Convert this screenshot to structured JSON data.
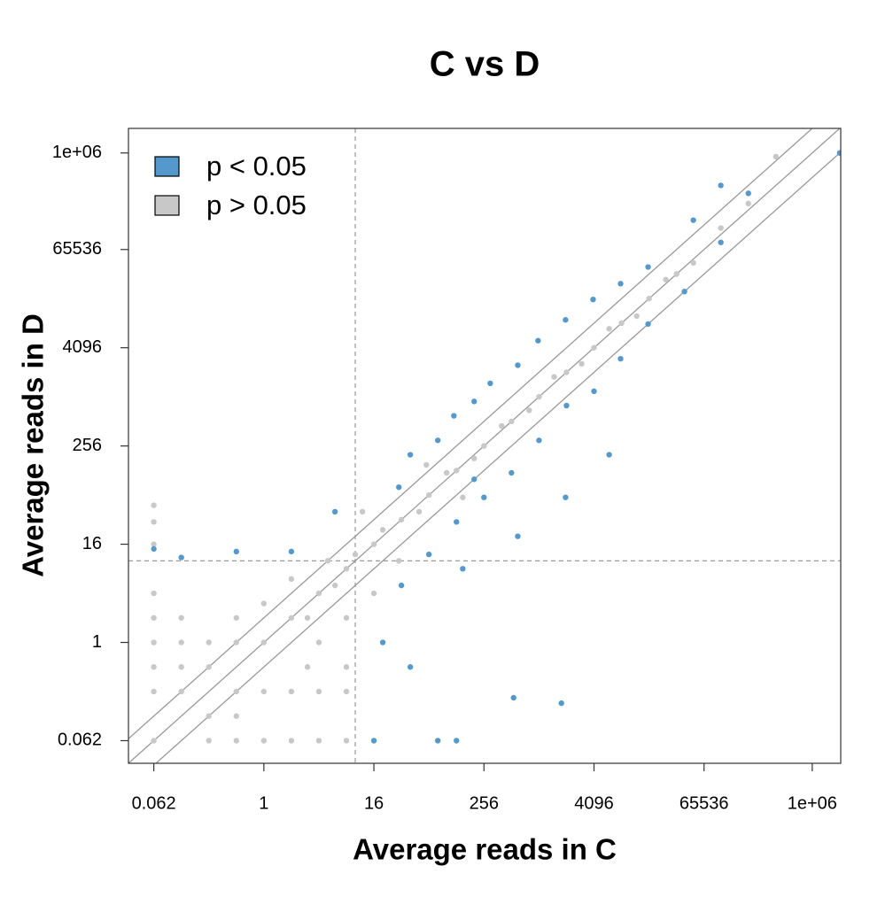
{
  "chart_data": {
    "type": "scatter",
    "title": "C vs D",
    "xlabel": "Average reads in C",
    "ylabel": "Average reads in D",
    "xscale": "log2",
    "yscale": "log2",
    "xlim": [
      0.033,
      2050000
    ],
    "ylim": [
      0.033,
      2000000
    ],
    "xticks": [
      {
        "value": 0.0625,
        "label": "0.062"
      },
      1,
      16,
      256,
      4096,
      65536,
      {
        "value": 1000000,
        "label": "1e+06"
      }
    ],
    "yticks": [
      {
        "value": 0.0625,
        "label": "0.062"
      },
      1,
      16,
      256,
      4096,
      65536,
      {
        "value": 1000000,
        "label": "1e+06"
      }
    ],
    "vlines": [
      10
    ],
    "hlines": [
      10
    ],
    "ref_line_factors": [
      0.5,
      1,
      2
    ],
    "legend_position": "upper left",
    "series": [
      {
        "name": "p < 0.05",
        "color": "#5599cc",
        "x": [
          0.0625,
          0.125,
          0.5,
          2,
          6,
          30,
          40,
          80,
          120,
          200,
          300,
          600,
          1000,
          2000,
          4000,
          8000,
          16000,
          50000,
          100000,
          200000,
          2000000,
          100000,
          40000,
          16000,
          8000,
          4096,
          2048,
          1024,
          512,
          256,
          128,
          64,
          32,
          20,
          40,
          540,
          1800,
          16,
          80,
          128,
          6000,
          2000,
          600,
          150,
          200
        ],
        "values": [
          14,
          11,
          13,
          13,
          40,
          80,
          200,
          300,
          600,
          900,
          1500,
          2500,
          5000,
          9000,
          16000,
          25000,
          40000,
          150000,
          400000,
          320000,
          1000000,
          80000,
          20000,
          8000,
          3000,
          1200,
          800,
          300,
          120,
          60,
          30,
          12,
          5,
          1,
          0.5,
          0.21,
          0.18,
          0.0625,
          0.0625,
          0.0625,
          200,
          60,
          20,
          8,
          100
        ]
      },
      {
        "name": "p > 0.05",
        "color": "#c8c8c8",
        "x": [
          0.0625,
          0.0625,
          0.0625,
          0.0625,
          0.0625,
          0.0625,
          0.0625,
          0.0625,
          0.0625,
          0.125,
          0.125,
          0.125,
          0.25,
          0.5,
          1,
          2,
          4,
          8,
          0.25,
          0.5,
          1,
          2,
          4,
          8,
          0.25,
          0.5,
          1,
          2,
          3,
          4,
          6,
          8,
          10,
          16,
          20,
          32,
          50,
          64,
          100,
          128,
          200,
          256,
          400,
          512,
          800,
          1024,
          1500,
          2048,
          3000,
          4096,
          6000,
          8192,
          12000,
          16384,
          25000,
          32768,
          50000,
          100000,
          200000,
          0.5,
          1,
          2,
          0.25,
          0.5,
          3,
          4,
          8,
          16,
          5,
          12,
          30,
          60,
          150,
          0.125,
          400000,
          8
        ],
        "values": [
          0.0625,
          0.5,
          1,
          2,
          4,
          16,
          30,
          48,
          0.25,
          0.5,
          1,
          2,
          0.0625,
          0.0625,
          0.0625,
          0.0625,
          0.0625,
          0.0625,
          0.125,
          0.25,
          0.25,
          0.25,
          0.25,
          0.25,
          0.5,
          1,
          1,
          2,
          2,
          4,
          5,
          8,
          12,
          16,
          24,
          32,
          40,
          64,
          120,
          128,
          180,
          256,
          450,
          512,
          700,
          1024,
          1800,
          2048,
          2600,
          4096,
          7000,
          8192,
          10000,
          16384,
          28000,
          32768,
          45000,
          120000,
          240000,
          2,
          3,
          6,
          1,
          0.125,
          0.5,
          1,
          2,
          4,
          10,
          40,
          10,
          150,
          60,
          0.25,
          900000,
          0.5
        ]
      }
    ]
  }
}
